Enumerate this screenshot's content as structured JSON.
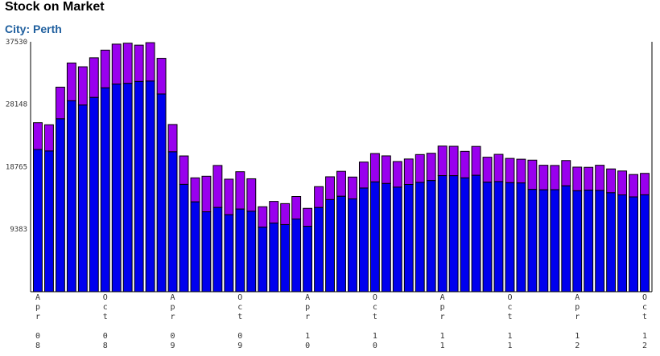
{
  "title": "Stock on Market",
  "subtitle": "City: Perth",
  "colors": {
    "lower": "#0000ee",
    "upper": "#9900ee",
    "outline": "#000000"
  },
  "chart_data": {
    "type": "bar",
    "stacked": true,
    "ylim": [
      0,
      37530
    ],
    "yticks": [
      "9383",
      "18765",
      "28148",
      "37530"
    ],
    "xtick_labels": [
      {
        "index": 0,
        "month": "Apr",
        "year": "08"
      },
      {
        "index": 6,
        "month": "Oct",
        "year": "08"
      },
      {
        "index": 12,
        "month": "Apr",
        "year": "09"
      },
      {
        "index": 18,
        "month": "Oct",
        "year": "09"
      },
      {
        "index": 24,
        "month": "Apr",
        "year": "10"
      },
      {
        "index": 30,
        "month": "Oct",
        "year": "10"
      },
      {
        "index": 36,
        "month": "Apr",
        "year": "11"
      },
      {
        "index": 42,
        "month": "Oct",
        "year": "11"
      },
      {
        "index": 48,
        "month": "Apr",
        "year": "12"
      },
      {
        "index": 54,
        "month": "Oct",
        "year": "12"
      }
    ],
    "series": [
      {
        "values": [
          21360,
          21130,
          25960,
          28670,
          28030,
          29170,
          30610,
          31180,
          31280,
          31570,
          31630,
          29690,
          21010,
          16120,
          13490,
          12000,
          12650,
          11560,
          12410,
          12080,
          9690,
          10310,
          10080,
          10920,
          9820,
          12640,
          13830,
          14330,
          13940,
          15570,
          16490,
          16250,
          15700,
          16110,
          16420,
          16690,
          17430,
          17420,
          17090,
          17480,
          16450,
          16540,
          16370,
          16330,
          15360,
          15300,
          15320,
          15900,
          15160,
          15250,
          15210,
          14860,
          14540,
          14240,
          14550
        ],
        "totals": [
          25380,
          25070,
          30720,
          34350,
          33780,
          35130,
          36280,
          37180,
          37320,
          37030,
          37400,
          35050,
          25110,
          20390,
          17100,
          17340,
          18960,
          16900,
          18020,
          16960,
          12760,
          13560,
          13230,
          14300,
          12520,
          15780,
          17260,
          18080,
          17220,
          19470,
          20750,
          20400,
          19550,
          19930,
          20600,
          20790,
          21870,
          21840,
          21080,
          21820,
          20200,
          20630,
          20020,
          19900,
          19760,
          18990,
          18960,
          19700,
          18710,
          18680,
          18990,
          18440,
          18130,
          17600,
          17770
        ]
      }
    ]
  }
}
